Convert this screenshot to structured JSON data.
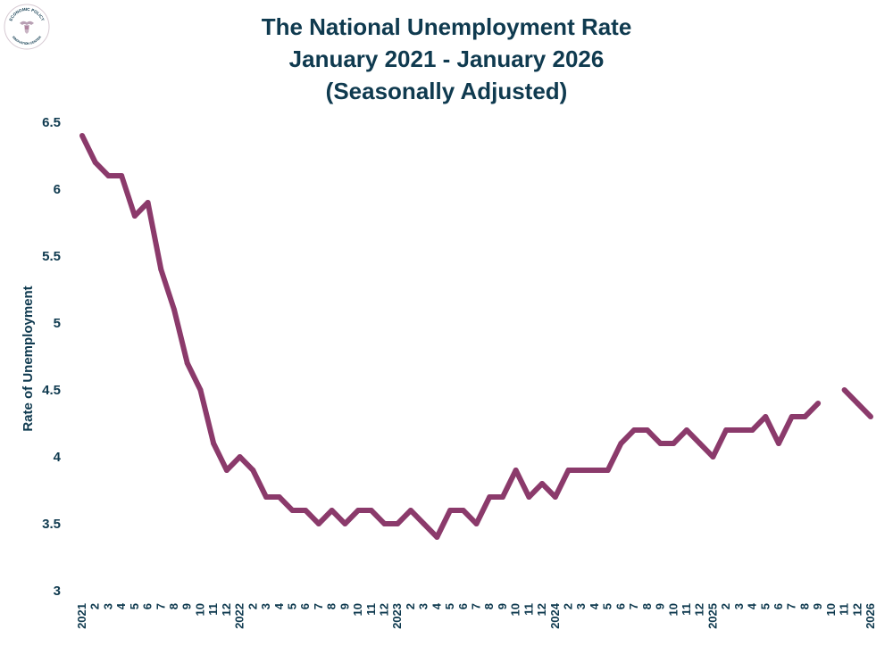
{
  "logo": {
    "text_top": "ECONOMIC POLICY",
    "text_bottom": "INNOVATION CENTER",
    "icon": "eagle-seal-icon"
  },
  "colors": {
    "title": "#0f3a4f",
    "line": "#8b3a6b",
    "axis_text": "#0f3a4f"
  },
  "chart_data": {
    "type": "line",
    "title": "The National Unemployment Rate",
    "subtitle_1": "January 2021 - January 2026",
    "subtitle_2": "(Seasonally Adjusted)",
    "xlabel": "",
    "ylabel": "Rate of Unemployment",
    "ylim": [
      3,
      6.5
    ],
    "yticks": [
      "3",
      "3.5",
      "4",
      "4.5",
      "5",
      "5.5",
      "6",
      "6.5"
    ],
    "grid": false,
    "categories": [
      "2021",
      "2",
      "3",
      "4",
      "5",
      "6",
      "7",
      "8",
      "9",
      "10",
      "11",
      "12",
      "2022",
      "2",
      "3",
      "4",
      "5",
      "6",
      "7",
      "8",
      "9",
      "10",
      "11",
      "12",
      "2023",
      "2",
      "3",
      "4",
      "5",
      "6",
      "7",
      "8",
      "9",
      "10",
      "11",
      "12",
      "2024",
      "2",
      "3",
      "4",
      "5",
      "6",
      "7",
      "8",
      "9",
      "10",
      "11",
      "12",
      "2025",
      "2",
      "3",
      "4",
      "5",
      "6",
      "7",
      "8",
      "9",
      "10",
      "11",
      "12",
      "2026"
    ],
    "series": [
      {
        "values": [
          6.4,
          6.2,
          6.1,
          6.1,
          5.8,
          5.9,
          5.4,
          5.1,
          4.7,
          4.5,
          4.1,
          3.9,
          4.0,
          3.9,
          3.7,
          3.7,
          3.6,
          3.6,
          3.5,
          3.6,
          3.5,
          3.6,
          3.6,
          3.5,
          3.5,
          3.6,
          3.5,
          3.4,
          3.6,
          3.6,
          3.5,
          3.7,
          3.7,
          3.9,
          3.7,
          3.8,
          3.7,
          3.9,
          3.9,
          3.9,
          3.9,
          4.1,
          4.2,
          4.2,
          4.1,
          4.1,
          4.2,
          4.1,
          4.0,
          4.2,
          4.2,
          4.2,
          4.3,
          4.1,
          4.3,
          4.3,
          4.4,
          null,
          4.5,
          4.4,
          4.3
        ]
      }
    ]
  }
}
